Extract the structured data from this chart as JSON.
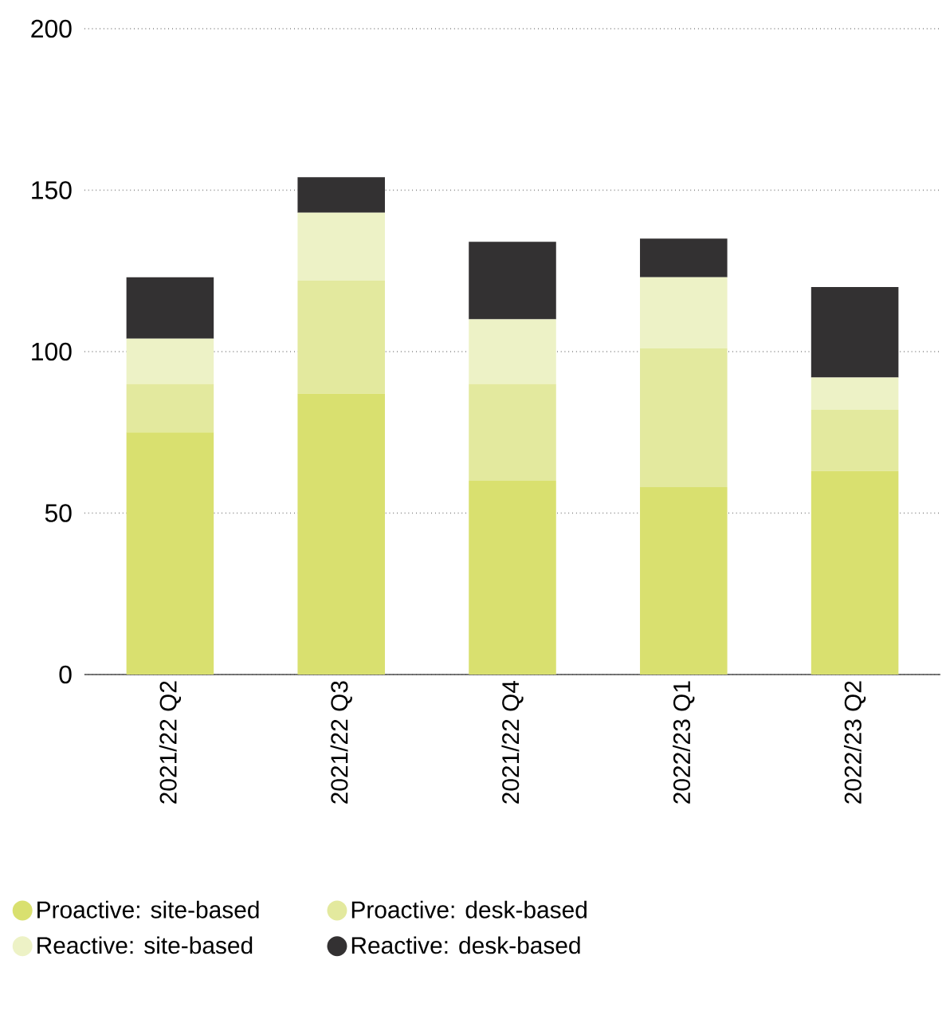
{
  "chart_data": {
    "type": "bar",
    "stacked": true,
    "categories": [
      "2021/22 Q2",
      "2021/22 Q3",
      "2021/22 Q4",
      "2022/23 Q1",
      "2022/23 Q2"
    ],
    "series": [
      {
        "name": "Proactive: site-based",
        "color": "#d9e06f",
        "values": [
          75,
          87,
          60,
          58,
          63
        ]
      },
      {
        "name": "Proactive: desk-based",
        "color": "#e3e99e",
        "values": [
          15,
          35,
          30,
          43,
          19
        ]
      },
      {
        "name": "Reactive: site-based",
        "color": "#edf2c6",
        "values": [
          14,
          21,
          20,
          22,
          10
        ]
      },
      {
        "name": "Reactive: desk-based",
        "color": "#333132",
        "values": [
          19,
          11,
          24,
          12,
          28
        ]
      }
    ],
    "ylim": [
      0,
      200
    ],
    "yticks": [
      0,
      50,
      100,
      150,
      200
    ],
    "grid": "y",
    "legend": "bottom"
  }
}
